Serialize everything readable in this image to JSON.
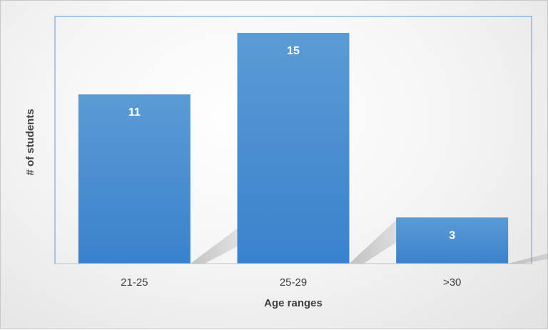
{
  "chart_data": {
    "type": "bar",
    "categories": [
      "21-25",
      "25-29",
      ">30"
    ],
    "values": [
      11,
      15,
      3
    ],
    "data_labels": [
      "11",
      "15",
      "3"
    ],
    "title": "",
    "xlabel": "Age ranges",
    "ylabel": "# of students",
    "ylim": [
      0,
      15
    ],
    "grid": false,
    "legend": "none",
    "bar_color": "#4a90d9",
    "bar_color_top": "#5b9bd5",
    "bar_color_bottom": "#3a82cd",
    "plot_border_color": "#5b9bd5"
  }
}
